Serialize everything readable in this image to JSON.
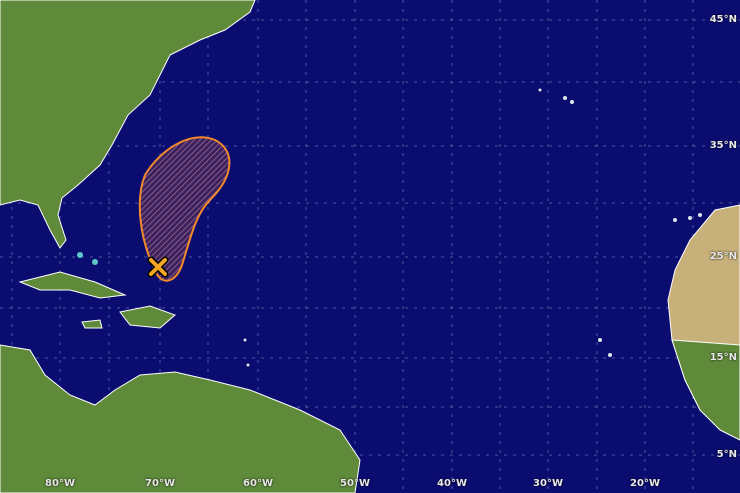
{
  "map": {
    "latitude_labels": [
      "45°N",
      "35°N",
      "25°N",
      "15°N",
      "5°N"
    ],
    "longitude_labels": [
      "80°W",
      "70°W",
      "60°W",
      "50°W",
      "40°W",
      "30°W",
      "20°W"
    ],
    "outlook_area": {
      "shape": "hatched elongated area",
      "outline_color": "#f28a2c",
      "hatch_color": "#c07a9a"
    },
    "disturbance_marker": {
      "icon": "x-marker-icon",
      "color": "#f5a623"
    },
    "colors": {
      "ocean": "#0a0c70",
      "land": "#5f8a3a",
      "borders": "#ffffff",
      "grid": "#5a6aa8"
    }
  }
}
